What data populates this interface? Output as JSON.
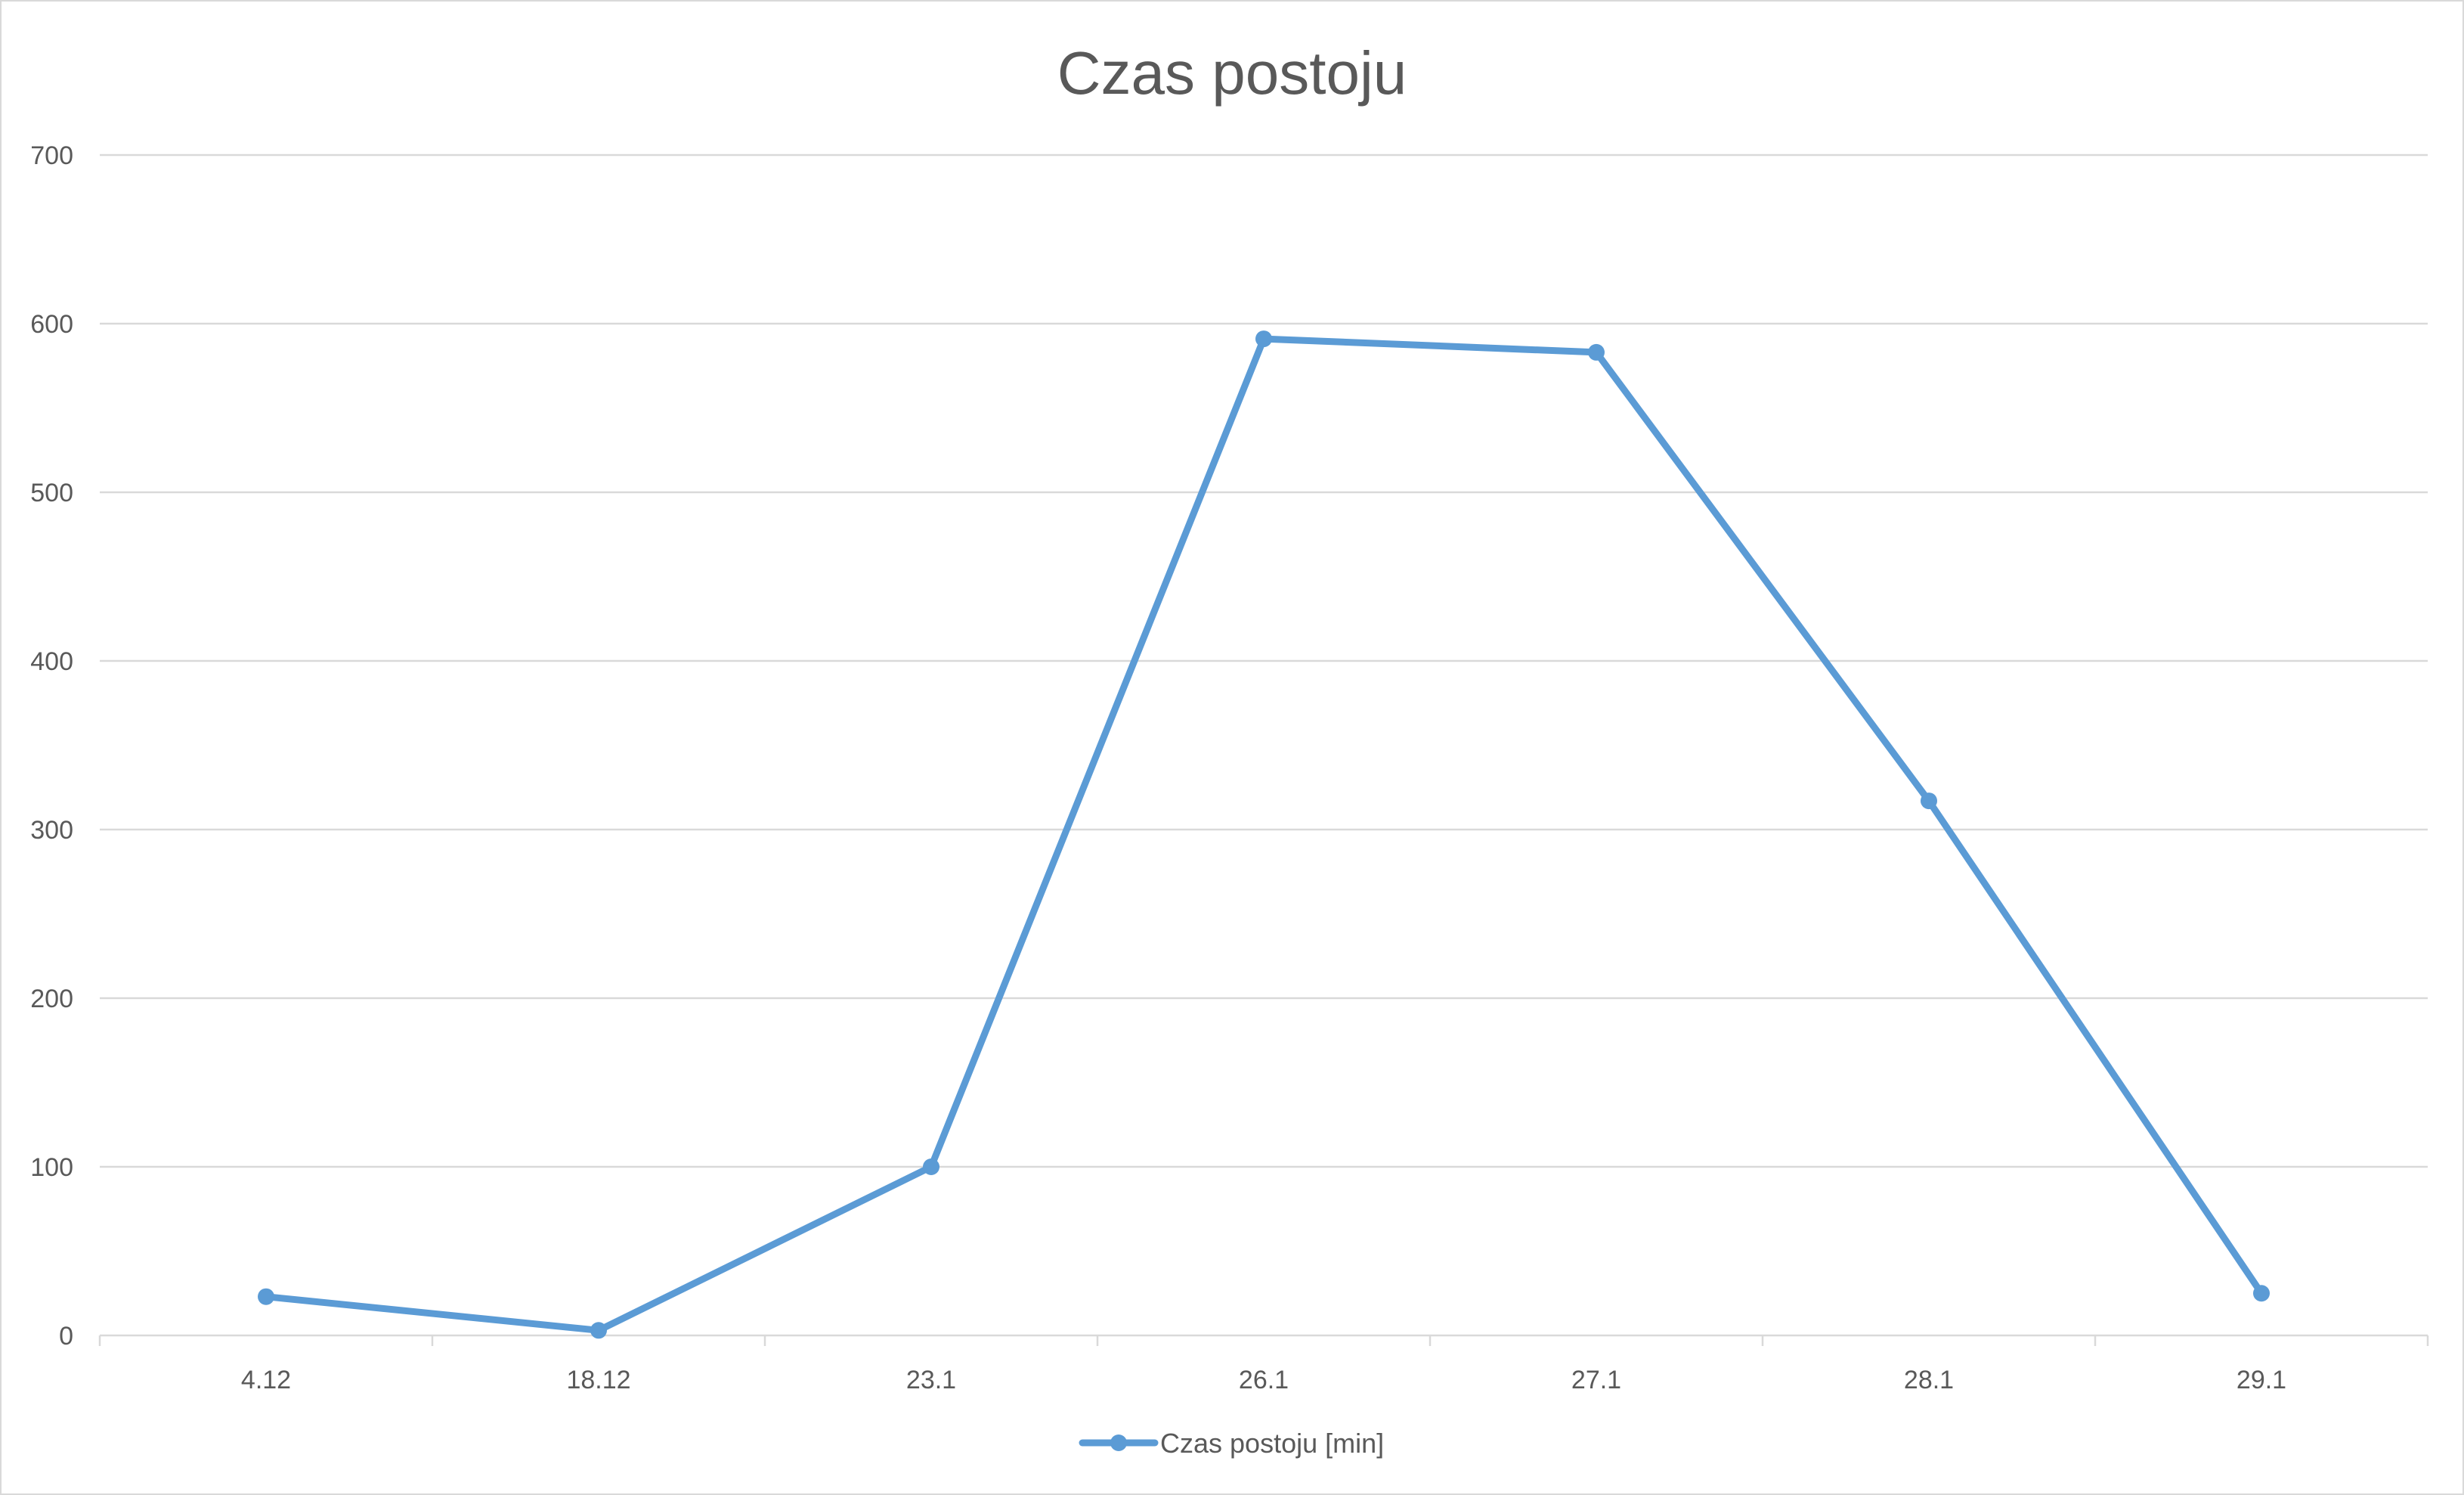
{
  "chart_data": {
    "type": "line",
    "title": "Czas postoju",
    "xlabel": "",
    "ylabel": "",
    "categories": [
      "4.12",
      "18.12",
      "23.1",
      "26.1",
      "27.1",
      "28.1",
      "29.1"
    ],
    "series": [
      {
        "name": "Czas postoju [min]",
        "values": [
          23,
          3,
          100,
          591,
          583,
          317,
          25
        ],
        "color": "#5b9bd5",
        "marker": "circle"
      }
    ],
    "ylim": [
      0,
      700
    ],
    "yticks": [
      0,
      100,
      200,
      300,
      400,
      500,
      600,
      700
    ],
    "grid": true,
    "legend_position": "bottom"
  }
}
